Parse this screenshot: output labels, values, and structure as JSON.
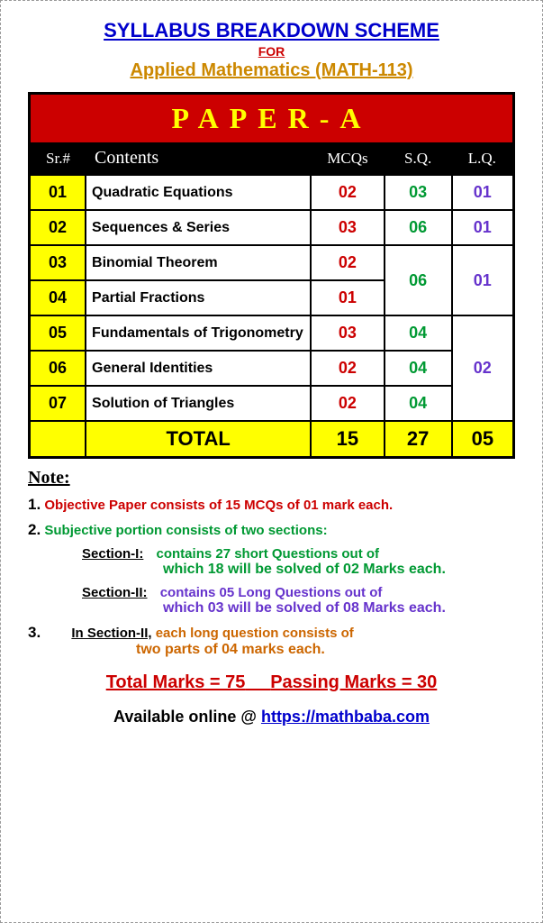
{
  "header": {
    "title": "SYLLABUS BREAKDOWN SCHEME",
    "for": "FOR",
    "subtitle": "Applied Mathematics (MATH-113)"
  },
  "paper_header": "PAPER-A",
  "columns": {
    "sr": "Sr.#",
    "contents": "Contents",
    "mcqs": "MCQs",
    "sq": "S.Q.",
    "lq": "L.Q."
  },
  "rows": [
    {
      "sr": "01",
      "content": "Quadratic Equations",
      "mcq": "02",
      "sq": "03",
      "lq": "01"
    },
    {
      "sr": "02",
      "content": "Sequences & Series",
      "mcq": "03",
      "sq": "06",
      "lq": "01"
    },
    {
      "sr": "03",
      "content": "Binomial Theorem",
      "mcq": "02"
    },
    {
      "sr": "04",
      "content": "Partial Fractions",
      "mcq": "01"
    },
    {
      "sr": "05",
      "content": "Fundamentals of Trigonometry",
      "mcq": "03",
      "sq": "04"
    },
    {
      "sr": "06",
      "content": "General Identities",
      "mcq": "02",
      "sq": "04"
    },
    {
      "sr": "07",
      "content": "Solution of Triangles",
      "mcq": "02",
      "sq": "04"
    }
  ],
  "merged": {
    "sq_34": "06",
    "lq_34": "01",
    "lq_567": "02"
  },
  "total": {
    "label": "TOTAL",
    "mcq": "15",
    "sq": "27",
    "lq": "05"
  },
  "notes": {
    "heading": "Note:",
    "n1_num": "1.",
    "n1": "Objective Paper consists of 15 MCQs of 01 mark each.",
    "n2_num": "2.",
    "n2": "Subjective portion consists of two sections:",
    "s1_label": "Section-I:",
    "s1a": "contains 27 short Questions out of",
    "s1b": "which 18 will be solved of 02 Marks each.",
    "s2_label": "Section-II:",
    "s2a": "contains 05 Long Questions out of",
    "s2b": "which 03 will be solved of 08 Marks each.",
    "n3_num": "3.",
    "n3_label": "In Section-II,",
    "n3a": "each long question consists of",
    "n3b": "two parts of 04 marks each."
  },
  "marks": {
    "total": "Total Marks = 75",
    "passing": "Passing Marks = 30"
  },
  "footer": {
    "text": "Available online @ ",
    "url": "https://mathbaba.com"
  }
}
